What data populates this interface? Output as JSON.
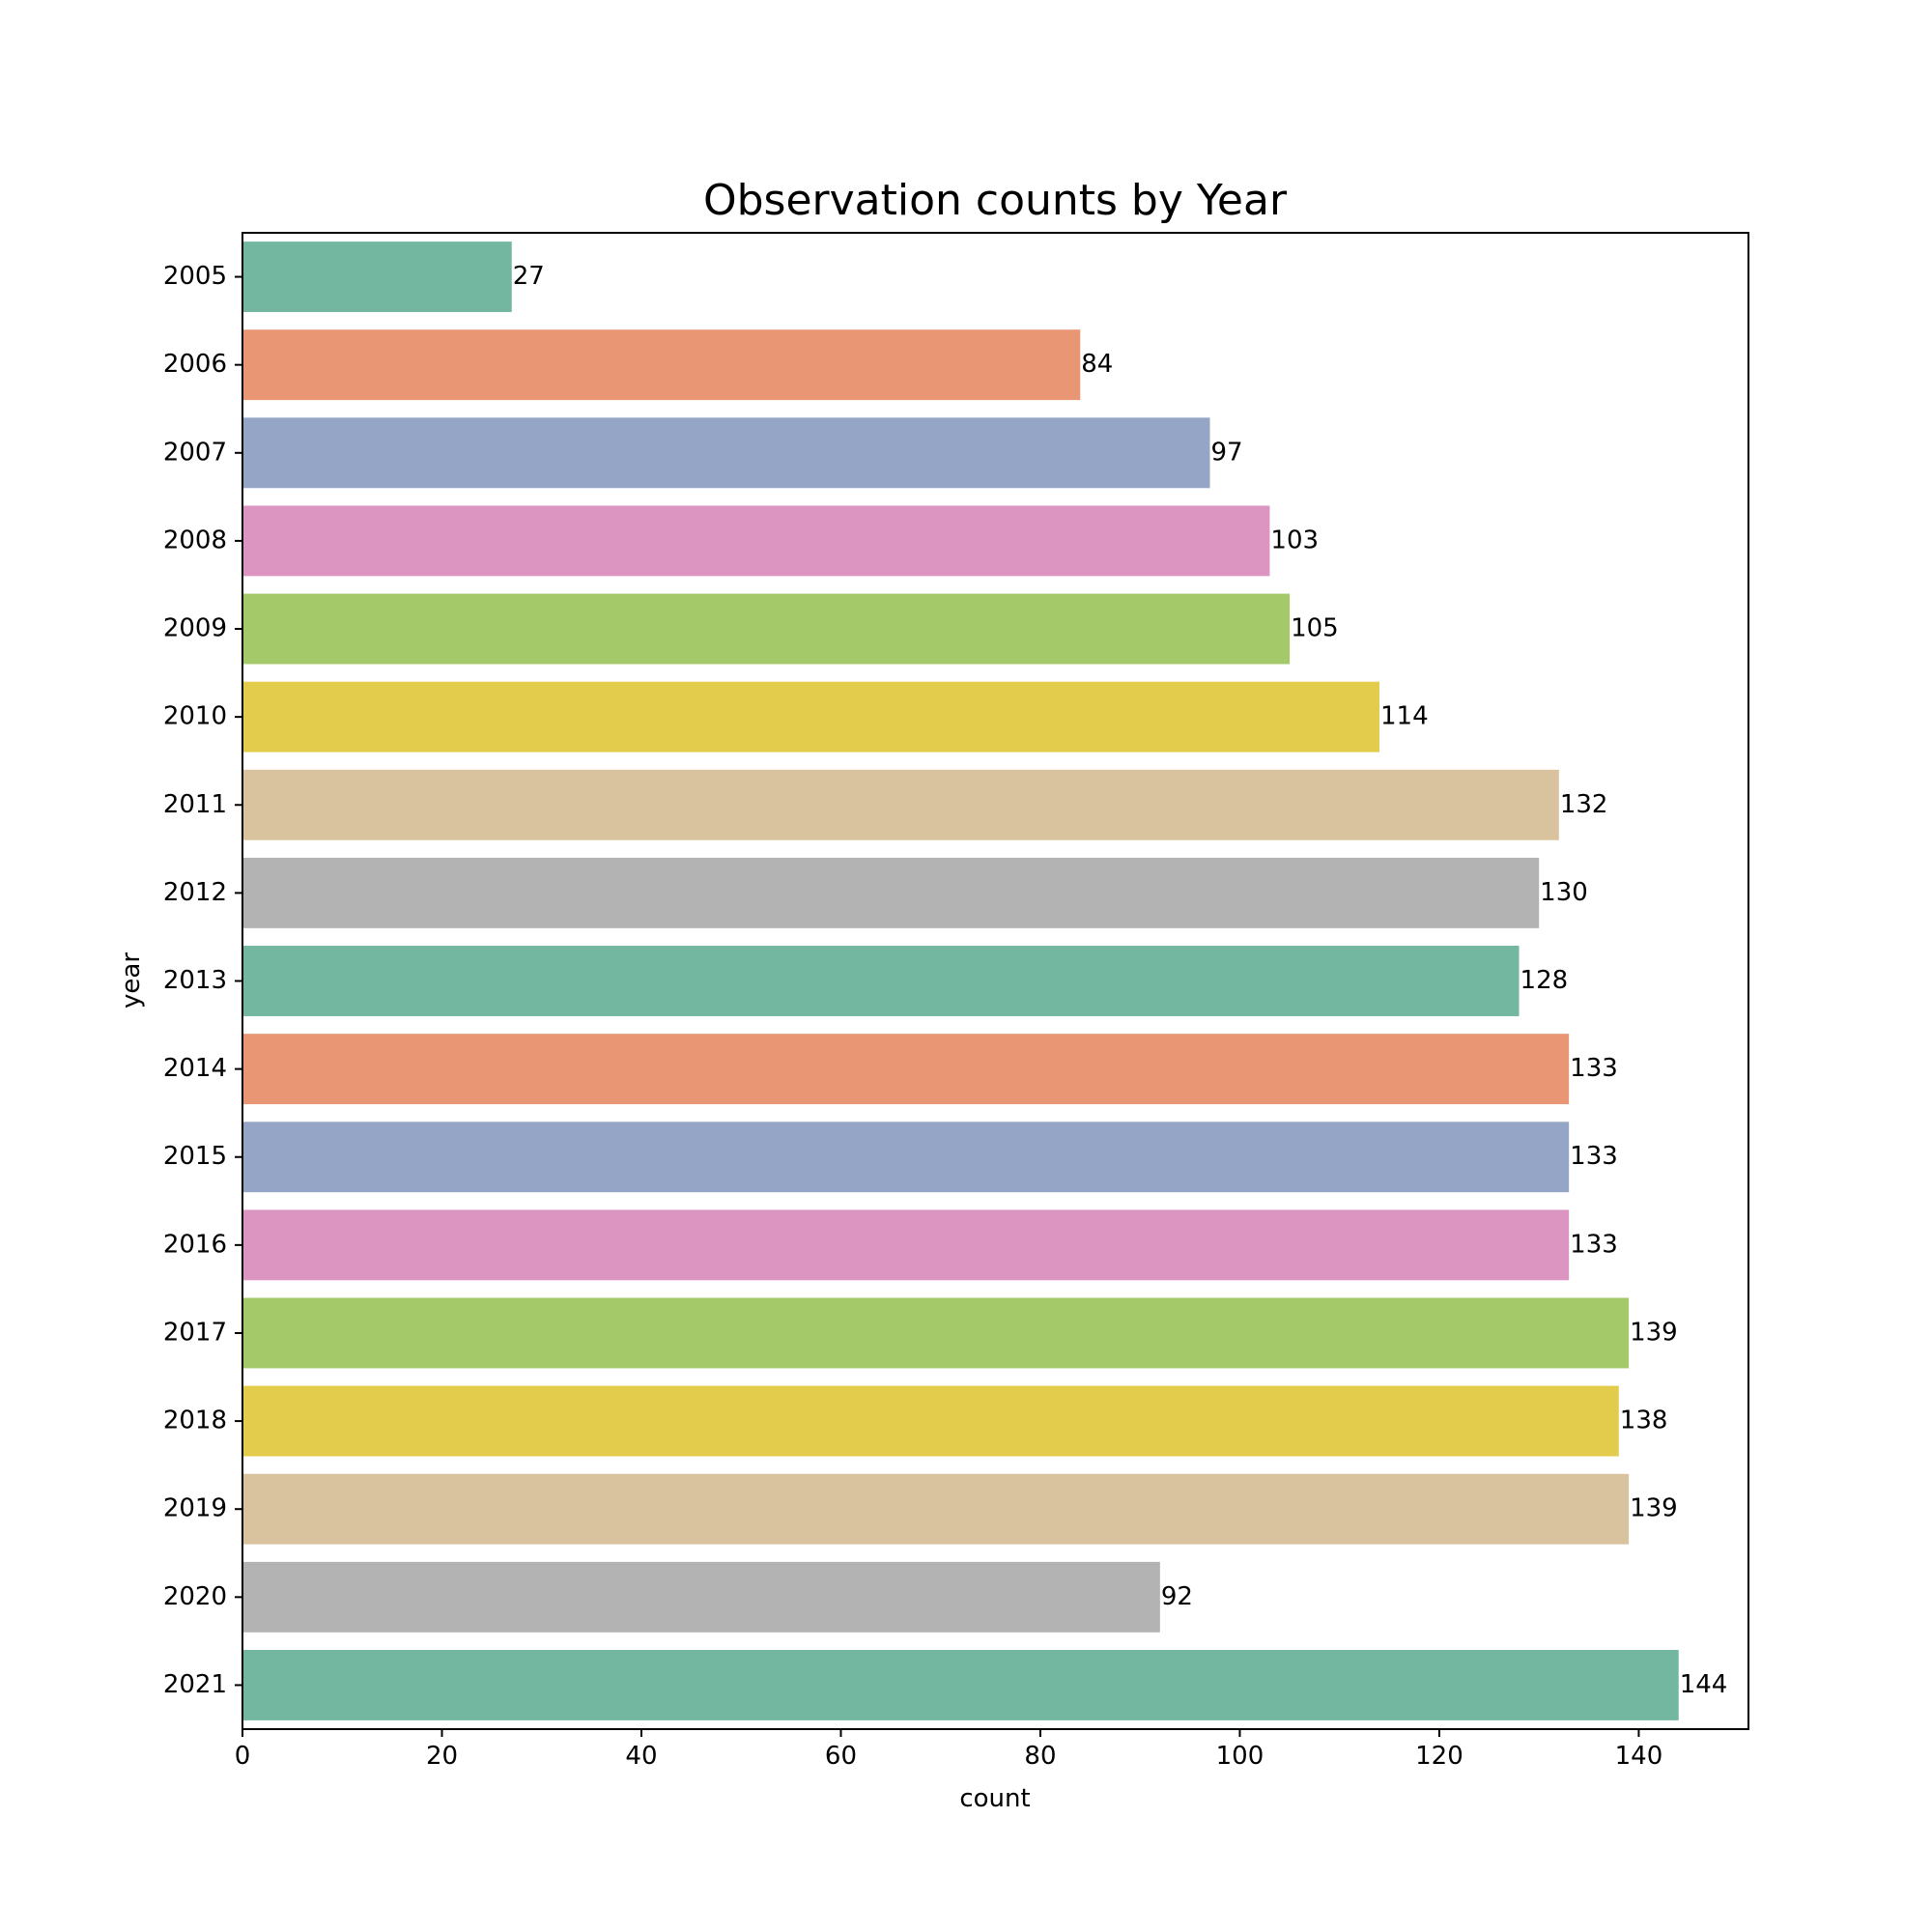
{
  "chart_data": {
    "type": "bar",
    "orientation": "horizontal",
    "title": "Observation counts by Year",
    "xlabel": "count",
    "ylabel": "year",
    "xlim": [
      0,
      151
    ],
    "xticks": [
      0,
      20,
      40,
      60,
      80,
      100,
      120,
      140
    ],
    "categories": [
      "2005",
      "2006",
      "2007",
      "2008",
      "2009",
      "2010",
      "2011",
      "2012",
      "2013",
      "2014",
      "2015",
      "2016",
      "2017",
      "2018",
      "2019",
      "2020",
      "2021"
    ],
    "values": [
      27,
      84,
      97,
      103,
      105,
      114,
      132,
      130,
      128,
      133,
      133,
      133,
      139,
      138,
      139,
      92,
      144
    ],
    "data_labels": [
      "27",
      "84",
      "97",
      "103",
      "105",
      "114",
      "132",
      "130",
      "128",
      "133",
      "133",
      "133",
      "139",
      "138",
      "139",
      "92",
      "144"
    ],
    "colors": [
      "#74b7a0",
      "#e89674",
      "#95a5c5",
      "#dc95c0",
      "#a3c968",
      "#e3cb4b",
      "#d9c39f",
      "#b3b3b3",
      "#74b7a0",
      "#e89674",
      "#95a5c5",
      "#dc95c0",
      "#a3c968",
      "#e3cb4b",
      "#d9c39f",
      "#b3b3b3",
      "#74b7a0"
    ],
    "grid": false,
    "legend": "none"
  }
}
